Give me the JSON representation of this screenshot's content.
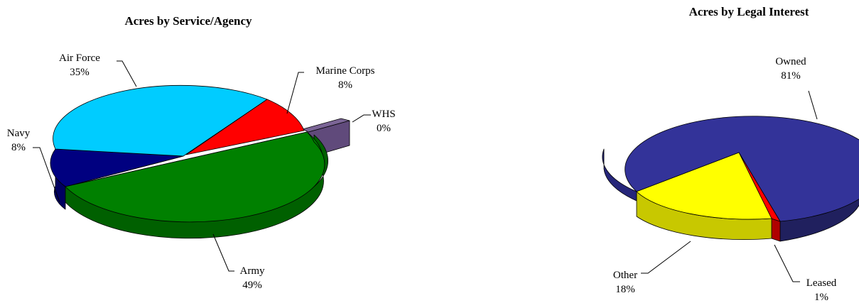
{
  "chart_data": [
    {
      "type": "pie",
      "style": "3d-exploded",
      "title": "Acres by Service/Agency",
      "slices": [
        {
          "label": "Air Force",
          "value": 35,
          "value_label": "35%",
          "color": "#00CCFF"
        },
        {
          "label": "Marine Corps",
          "value": 8,
          "value_label": "8%",
          "color": "#FF0000"
        },
        {
          "label": "WHS",
          "value": 0,
          "value_label": "0%",
          "color": "#604A7B"
        },
        {
          "label": "Army",
          "value": 49,
          "value_label": "49%",
          "color": "#008000"
        },
        {
          "label": "Navy",
          "value": 8,
          "value_label": "8%",
          "color": "#000080"
        }
      ]
    },
    {
      "type": "pie",
      "style": "3d-exploded",
      "title": "Acres by Legal Interest",
      "slices": [
        {
          "label": "Owned",
          "value": 81,
          "value_label": "81%",
          "color": "#333399"
        },
        {
          "label": "Leased",
          "value": 1,
          "value_label": "1%",
          "color": "#FF0000"
        },
        {
          "label": "Other",
          "value": 18,
          "value_label": "18%",
          "color": "#FFFF00"
        }
      ]
    }
  ]
}
